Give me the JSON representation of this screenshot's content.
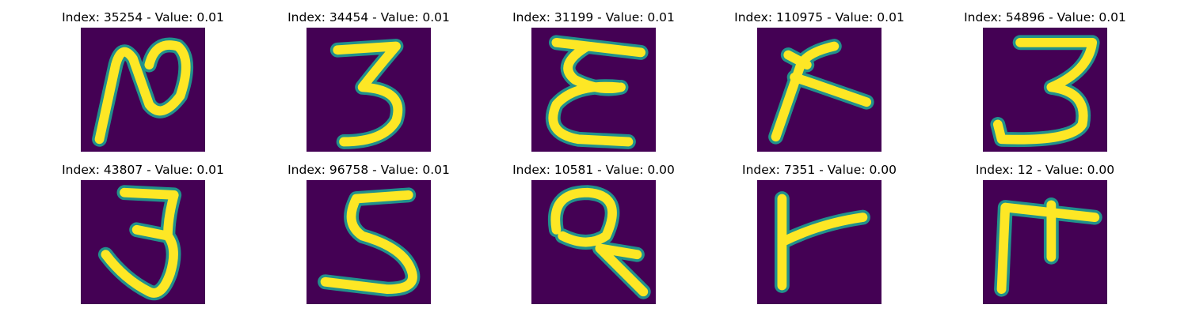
{
  "chart_data": {
    "type": "heatmap",
    "colors": {
      "background": "#440154",
      "stroke": "#fde725",
      "edge": "#21918c",
      "page": "#ffffff"
    },
    "panels": [
      {
        "title": "Index: 35254 - Value: 0.01",
        "index": 35254,
        "value": 0.01,
        "glyph": "ᑎ"
      },
      {
        "title": "Index: 34454 - Value: 0.01",
        "index": 34454,
        "value": 0.01,
        "glyph": "3"
      },
      {
        "title": "Index: 31199 - Value: 0.01",
        "index": 31199,
        "value": 0.01,
        "glyph": "ξ"
      },
      {
        "title": "Index: 110975 - Value: 0.01",
        "index": 110975,
        "value": 0.01,
        "glyph": "ʎ"
      },
      {
        "title": "Index: 54896 - Value: 0.01",
        "index": 54896,
        "value": 0.01,
        "glyph": "3"
      },
      {
        "title": "Index: 43807 - Value: 0.01",
        "index": 43807,
        "value": 0.01,
        "glyph": "3"
      },
      {
        "title": "Index: 96758 - Value: 0.01",
        "index": 96758,
        "value": 0.01,
        "glyph": "S"
      },
      {
        "title": "Index: 10581 - Value: 0.00",
        "index": 10581,
        "value": 0.0,
        "glyph": "ϙ"
      },
      {
        "title": "Index: 7351 - Value: 0.00",
        "index": 7351,
        "value": 0.0,
        "glyph": "ㅏ"
      },
      {
        "title": "Index: 12 - Value: 0.00",
        "index": 12,
        "value": 0.0,
        "glyph": "ㅠ"
      }
    ]
  }
}
